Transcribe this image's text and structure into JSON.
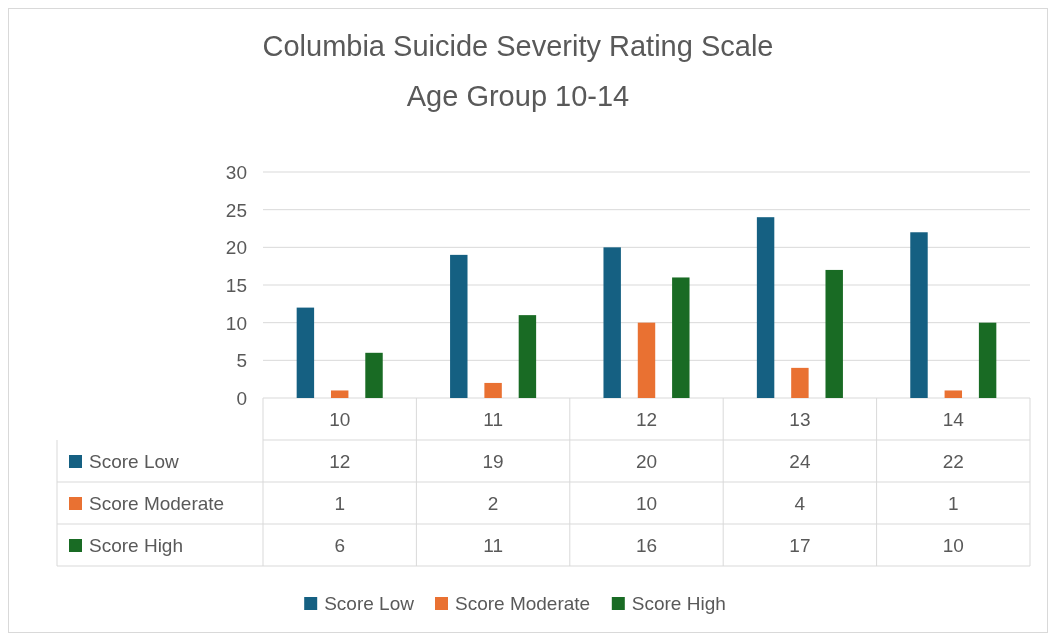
{
  "chart_data": {
    "type": "bar",
    "title": "Columbia Suicide Severity Rating Scale",
    "subtitle": "Age Group 10-14",
    "categories": [
      "10",
      "11",
      "12",
      "13",
      "14"
    ],
    "series": [
      {
        "name": "Score Low",
        "color": "#156082",
        "values": [
          12,
          19,
          20,
          24,
          22
        ]
      },
      {
        "name": "Score Moderate",
        "color": "#e97132",
        "values": [
          1,
          2,
          10,
          4,
          1
        ]
      },
      {
        "name": "Score High",
        "color": "#196b24",
        "values": [
          6,
          11,
          16,
          17,
          10
        ]
      }
    ],
    "ylim": [
      0,
      30
    ],
    "yticks": [
      0,
      5,
      10,
      15,
      20,
      25,
      30
    ],
    "grid": "y",
    "legend": "bottom",
    "data_labels": true
  }
}
